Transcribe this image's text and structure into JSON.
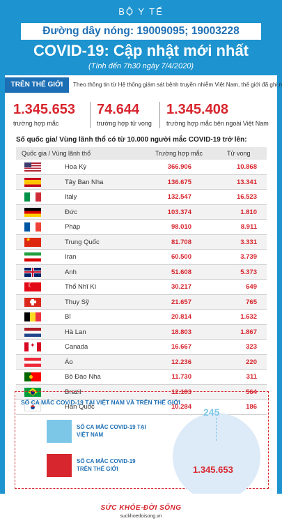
{
  "header": {
    "ministry": "BỘ Y TẾ",
    "hotline": "Đường dây nóng: 19009095; 19003228",
    "title": "COVID-19: Cập nhật mới nhất",
    "subtitle": "(Tính đến 7h30 ngày 7/4/2020)"
  },
  "world": {
    "tag": "TRÊN THẾ GIỚI",
    "intro": "Theo thông tin từ Hệ thống giám sát bệnh truyền nhiễm Việt Nam, thế giới đã ghi nhận:",
    "stats": [
      {
        "value": "1.345.653",
        "label": "trường hợp mắc"
      },
      {
        "value": "74.644",
        "label": "trường hợp tử vong"
      },
      {
        "value": "1.345.408",
        "label": "trường hợp  mắc bên ngoài Việt Nam"
      }
    ]
  },
  "table": {
    "title": "Số quốc gia/ Vùng lãnh thổ có từ 10.000 người  mắc COVID-19 trở lên:",
    "headers": {
      "country": "Quốc gia / Vùng lãnh thổ",
      "cases": "Trường hợp mắc",
      "deaths": "Tử vong"
    },
    "rows": [
      {
        "flag": "us-flag-icon",
        "country": "Hoa Kỳ",
        "cases": "366.906",
        "deaths": "10.868"
      },
      {
        "flag": "spain-flag-icon",
        "country": "Tây Ban Nha",
        "cases": "136.675",
        "deaths": "13.341"
      },
      {
        "flag": "italy-flag-icon",
        "country": "Italy",
        "cases": "132.547",
        "deaths": "16.523"
      },
      {
        "flag": "germany-flag-icon",
        "country": "Đức",
        "cases": "103.374",
        "deaths": "1.810"
      },
      {
        "flag": "france-flag-icon",
        "country": "Pháp",
        "cases": "98.010",
        "deaths": "8.911"
      },
      {
        "flag": "china-flag-icon",
        "country": "Trung Quốc",
        "cases": "81.708",
        "deaths": "3.331"
      },
      {
        "flag": "iran-flag-icon",
        "country": "Iran",
        "cases": "60.500",
        "deaths": "3.739"
      },
      {
        "flag": "uk-flag-icon",
        "country": "Anh",
        "cases": "51.608",
        "deaths": "5.373"
      },
      {
        "flag": "turkey-flag-icon",
        "country": "Thổ Nhĩ Kì",
        "cases": "30.217",
        "deaths": "649"
      },
      {
        "flag": "switzerland-flag-icon",
        "country": "Thụy Sỹ",
        "cases": "21.657",
        "deaths": "765"
      },
      {
        "flag": "belgium-flag-icon",
        "country": "Bỉ",
        "cases": "20.814",
        "deaths": "1.632"
      },
      {
        "flag": "netherlands-flag-icon",
        "country": "Hà Lan",
        "cases": "18.803",
        "deaths": "1.867"
      },
      {
        "flag": "canada-flag-icon",
        "country": "Canada",
        "cases": "16.667",
        "deaths": "323"
      },
      {
        "flag": "austria-flag-icon",
        "country": "Áo",
        "cases": "12.236",
        "deaths": "220"
      },
      {
        "flag": "portugal-flag-icon",
        "country": "Bồ Đào Nha",
        "cases": "11.730",
        "deaths": "311"
      },
      {
        "flag": "brazil-flag-icon",
        "country": "Brazil",
        "cases": "12.183",
        "deaths": "564"
      },
      {
        "flag": "korea-flag-icon",
        "country": "Hàn Quốc",
        "cases": "10.284",
        "deaths": "186"
      }
    ]
  },
  "compare": {
    "title": "SỐ CA MẮC COVID-19 TẠI VIỆT NAM VÀ TRÊN THẾ GIỚI",
    "vn_label": "SỐ CA MẮC COVID-19 TẠI VIỆT NAM",
    "world_label": "SỐ CA MẮC COVID-19 TRÊN THẾ GIỚI",
    "vn_value": "245",
    "world_value": "1.345.653",
    "vn_color": "#7cc6e8",
    "world_color": "#d7262e"
  },
  "footer": {
    "logo": "SỨC KHỎE·ĐỜI SỐNG",
    "site": "suckhoedoisong.vn"
  }
}
